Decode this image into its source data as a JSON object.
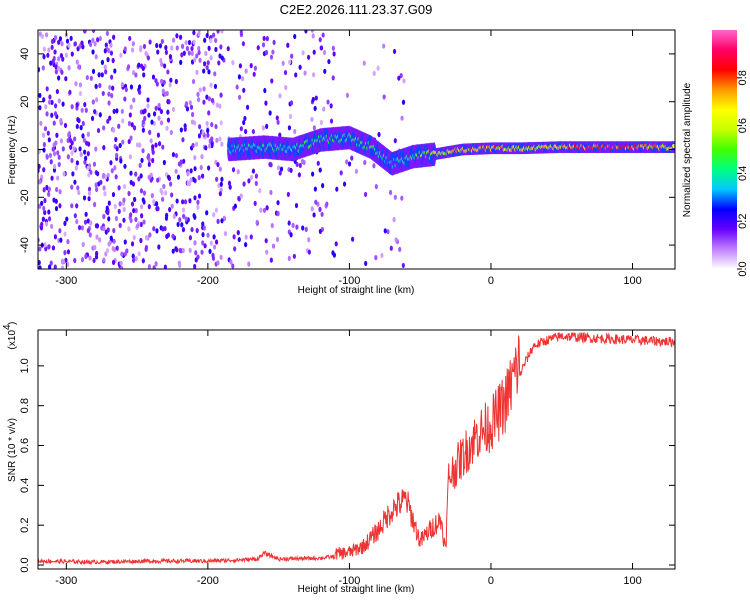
{
  "title": "C2E2.2026.111.23.37.G09",
  "chart_data": [
    {
      "type": "heatmap",
      "title": "C2E2.2026.111.23.37.G09",
      "xlabel": "Height of straight line (km)",
      "ylabel": "Frequency (Hz)",
      "xlim": [
        -320,
        130
      ],
      "ylim": [
        -50,
        50
      ],
      "xticks": [
        -300,
        -200,
        -100,
        0,
        100
      ],
      "yticks": [
        -40,
        -20,
        0,
        20,
        40
      ],
      "colorbar": {
        "label": "Normalized spectral amplitude",
        "range": [
          0,
          1
        ],
        "ticks": [
          "0.0",
          "0.2",
          "0.4",
          "0.6",
          "0.8"
        ],
        "tick_values": [
          0,
          0.2,
          0.4,
          0.6,
          0.8
        ],
        "colors": [
          "#ffffff",
          "#c080ff",
          "#6600ff",
          "#0000ff",
          "#00c8ff",
          "#00ff80",
          "#40ff00",
          "#c8ff00",
          "#ffff00",
          "#ff9900",
          "#ff0000",
          "#ff0066",
          "#ff66cc"
        ]
      },
      "ridge": [
        {
          "x": -185,
          "f": 0,
          "amp": 0.35
        },
        {
          "x": -160,
          "f": 1,
          "amp": 0.4
        },
        {
          "x": -140,
          "f": 0,
          "amp": 0.4
        },
        {
          "x": -120,
          "f": 4,
          "amp": 0.45
        },
        {
          "x": -100,
          "f": 5,
          "amp": 0.4
        },
        {
          "x": -85,
          "f": 1,
          "amp": 0.45
        },
        {
          "x": -70,
          "f": -6,
          "amp": 0.35
        },
        {
          "x": -55,
          "f": -3,
          "amp": 0.45
        },
        {
          "x": -40,
          "f": -2,
          "amp": 0.6
        },
        {
          "x": -20,
          "f": 0,
          "amp": 0.7
        },
        {
          "x": 0,
          "f": 0.5,
          "amp": 0.75
        },
        {
          "x": 20,
          "f": 0.5,
          "amp": 0.6
        },
        {
          "x": 50,
          "f": 1,
          "amp": 0.7
        },
        {
          "x": 80,
          "f": 1,
          "amp": 0.9
        },
        {
          "x": 100,
          "f": 1,
          "amp": 0.8
        },
        {
          "x": 130,
          "f": 1,
          "amp": 0.6
        }
      ]
    },
    {
      "type": "line",
      "xlabel": "Height of straight line (km)",
      "ylabel": "SNR (10 * v/v)",
      "y_scale_label": "(x10",
      "y_scale_exponent": "4",
      "xlim": [
        -320,
        130
      ],
      "ylim": [
        -0.02,
        1.18
      ],
      "xticks": [
        -300,
        -200,
        -100,
        0,
        100
      ],
      "yticks": [
        "0.0",
        "0.2",
        "0.4",
        "0.6",
        "0.8",
        "1.0"
      ],
      "ytick_values": [
        0.0,
        0.2,
        0.4,
        0.6,
        0.8,
        1.0
      ],
      "color": "#ee3333",
      "x": [
        -320,
        -280,
        -240,
        -200,
        -180,
        -165,
        -160,
        -150,
        -120,
        -100,
        -90,
        -80,
        -70,
        -60,
        -55,
        -50,
        -40,
        -35,
        -32,
        -30,
        -25,
        -20,
        -10,
        0,
        10,
        20,
        25,
        30,
        40,
        50,
        70,
        100,
        130
      ],
      "y": [
        0.02,
        0.015,
        0.02,
        0.02,
        0.025,
        0.03,
        0.06,
        0.03,
        0.035,
        0.05,
        0.08,
        0.15,
        0.25,
        0.3,
        0.2,
        0.1,
        0.18,
        0.2,
        0.05,
        0.4,
        0.45,
        0.5,
        0.6,
        0.65,
        0.75,
        0.95,
        1.03,
        1.1,
        1.13,
        1.15,
        1.14,
        1.13,
        1.12
      ]
    }
  ]
}
